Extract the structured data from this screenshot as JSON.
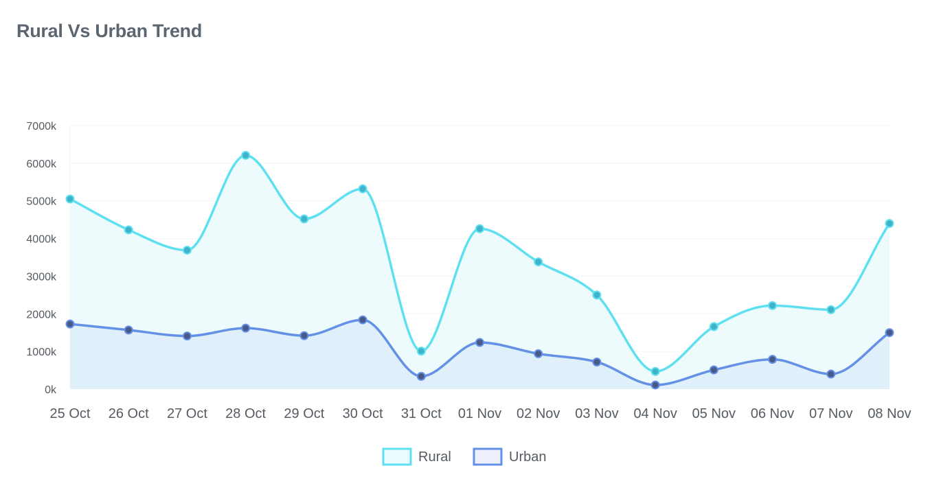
{
  "title": "Rural Vs Urban Trend",
  "chart_data": {
    "type": "area",
    "title": "Rural Vs Urban Trend",
    "xlabel": "",
    "ylabel": "",
    "categories": [
      "25 Oct",
      "26 Oct",
      "27 Oct",
      "28 Oct",
      "29 Oct",
      "30 Oct",
      "31 Oct",
      "01 Nov",
      "02 Nov",
      "03 Nov",
      "04 Nov",
      "05 Nov",
      "06 Nov",
      "07 Nov",
      "08 Nov"
    ],
    "ylim": [
      0,
      7000
    ],
    "y_ticks": [
      0,
      1000,
      2000,
      3000,
      4000,
      5000,
      6000,
      7000
    ],
    "y_tick_labels": [
      "0k",
      "1000k",
      "2000k",
      "3000k",
      "4000k",
      "5000k",
      "6000k",
      "7000k"
    ],
    "grid": true,
    "legend_position": "bottom",
    "series": [
      {
        "name": "Rural",
        "color": "#5fe0f0",
        "fill": "#eefbfd",
        "point_color": "#3fb4c8",
        "values": [
          5050,
          4230,
          3690,
          6210,
          4520,
          5320,
          1010,
          4260,
          3380,
          2500,
          470,
          1660,
          2220,
          2110,
          4400
        ]
      },
      {
        "name": "Urban",
        "color": "#6490e6",
        "fill": "#e0f0fa",
        "point_color": "#4a5a88",
        "values": [
          1730,
          1570,
          1410,
          1620,
          1420,
          1840,
          340,
          1240,
          940,
          720,
          110,
          510,
          790,
          400,
          1500
        ]
      }
    ]
  }
}
